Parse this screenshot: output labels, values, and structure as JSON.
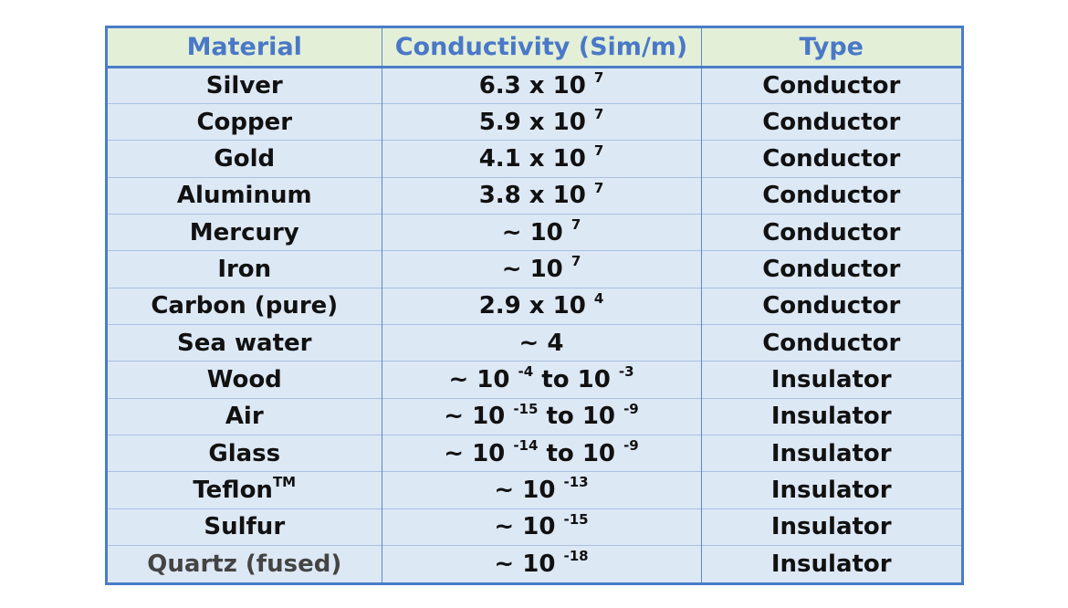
{
  "table": {
    "headers": [
      "Material",
      "Conductivity (Sim/m)",
      "Type"
    ],
    "rows": [
      {
        "material": "Silver",
        "mantissa": "6.3 x 10",
        "exp": "7",
        "tail": "",
        "exp2": "",
        "type": "Conductor"
      },
      {
        "material": "Copper",
        "mantissa": "5.9 x 10",
        "exp": "7",
        "tail": "",
        "exp2": "",
        "type": "Conductor"
      },
      {
        "material": "Gold",
        "mantissa": "4.1 x 10",
        "exp": "7",
        "tail": "",
        "exp2": "",
        "type": "Conductor"
      },
      {
        "material": "Aluminum",
        "mantissa": "3.8 x 10",
        "exp": "7",
        "tail": "",
        "exp2": "",
        "type": "Conductor"
      },
      {
        "material": "Mercury",
        "mantissa": "~ 10",
        "exp": "7",
        "tail": "",
        "exp2": "",
        "type": "Conductor"
      },
      {
        "material": "Iron",
        "mantissa": "~ 10",
        "exp": "7",
        "tail": "",
        "exp2": "",
        "type": "Conductor"
      },
      {
        "material": "Carbon (pure)",
        "mantissa": "2.9 x 10",
        "exp": "4",
        "tail": "",
        "exp2": "",
        "type": "Conductor"
      },
      {
        "material": "Sea water",
        "mantissa": "~ 4",
        "exp": "",
        "tail": "",
        "exp2": "",
        "type": "Conductor"
      },
      {
        "material": "Wood",
        "mantissa": "~ 10",
        "exp": "-4",
        "tail": " to 10",
        "exp2": "-3",
        "type": "Insulator"
      },
      {
        "material": "Air",
        "mantissa": "~ 10",
        "exp": "-15",
        "tail": " to 10",
        "exp2": "-9",
        "type": "Insulator"
      },
      {
        "material": "Glass",
        "mantissa": "~ 10",
        "exp": "-14",
        "tail": " to 10",
        "exp2": "-9",
        "type": "Insulator"
      },
      {
        "material": "Teflon",
        "material_sup": "TM",
        "mantissa": "~ 10",
        "exp": "-13",
        "tail": "",
        "exp2": "",
        "type": "Insulator"
      },
      {
        "material": "Sulfur",
        "mantissa": "~ 10",
        "exp": "-15",
        "tail": "",
        "exp2": "",
        "type": "Insulator"
      },
      {
        "material": "Quartz (fused)",
        "mantissa": "~ 10",
        "exp": "-18",
        "tail": "",
        "exp2": "",
        "type": "Insulator"
      }
    ]
  }
}
